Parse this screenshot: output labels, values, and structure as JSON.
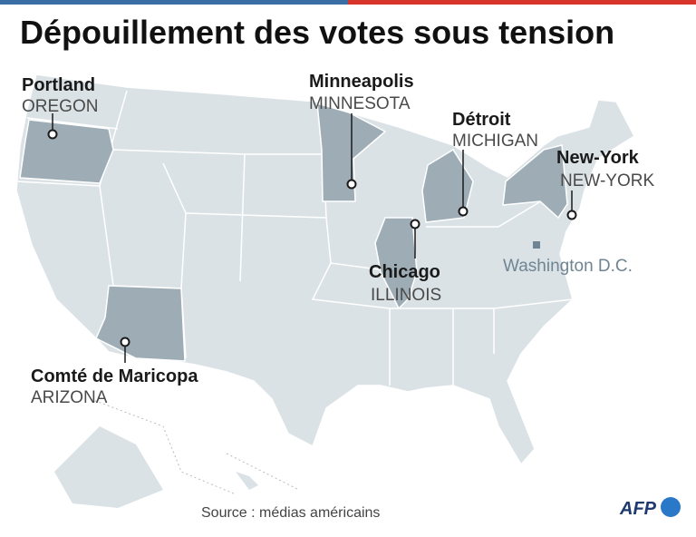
{
  "header": {
    "title": "Dépouillement des votes sous tension"
  },
  "locations": [
    {
      "city": "Portland",
      "state": "OREGON"
    },
    {
      "city": "Minneapolis",
      "state": "MINNESOTA"
    },
    {
      "city": "Détroit",
      "state": "MICHIGAN"
    },
    {
      "city": "New-York",
      "state": "NEW-YORK"
    },
    {
      "city": "Chicago",
      "state": "ILLINOIS"
    },
    {
      "city": "Comté de Maricopa",
      "state": "ARIZONA"
    }
  ],
  "capital": {
    "label": "Washington D.C."
  },
  "footer": {
    "source": "Source : médias américains",
    "logo": "AFP"
  }
}
